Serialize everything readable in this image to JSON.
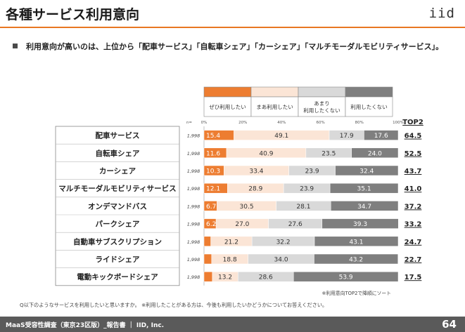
{
  "header": {
    "title": "各種サービス利用意向",
    "logo": "iid"
  },
  "summary": {
    "text": "利用意向が高いのは、上位から「配車サービス」「自転車シェア」「カーシェア」「マルチモーダルモビリティサービス」。"
  },
  "chart_data": {
    "type": "bar",
    "orientation": "horizontal",
    "stacked": true,
    "percent_axis": {
      "min": 0,
      "max": 100,
      "ticks": [
        "0%",
        "20%",
        "40%",
        "60%",
        "80%",
        "100%"
      ]
    },
    "n_label": "n=",
    "top2_header": "TOP2",
    "sort_note": "※利用意向TOP2で降順にソート",
    "series": [
      {
        "name": "ぜひ利用したい",
        "color": "#ed7d31"
      },
      {
        "name": "まあ利用したい",
        "color": "#fbe5d6"
      },
      {
        "name": "あまり利用したくない",
        "name_lines": [
          "あまり",
          "利用したくない"
        ],
        "color": "#d9d9d9"
      },
      {
        "name": "利用したくない",
        "color": "#7f7f7f"
      }
    ],
    "rows": [
      {
        "label": "配車サービス",
        "n": "1,998",
        "values": [
          15.4,
          49.1,
          17.9,
          17.6
        ],
        "labels": [
          "15.4",
          "49.1",
          "17.9",
          "17.6"
        ],
        "top2": "64.5"
      },
      {
        "label": "自転車シェア",
        "n": "1,998",
        "values": [
          11.6,
          40.9,
          23.5,
          24.0
        ],
        "labels": [
          "11.6",
          "40.9",
          "23.5",
          "24.0"
        ],
        "top2": "52.5"
      },
      {
        "label": "カーシェア",
        "n": "1,998",
        "values": [
          10.3,
          33.4,
          23.9,
          32.4
        ],
        "labels": [
          "10.3",
          "33.4",
          "23.9",
          "32.4"
        ],
        "top2": "43.7"
      },
      {
        "label": "マルチモーダルモビリティサービス",
        "n": "1,998",
        "values": [
          12.1,
          28.9,
          23.9,
          35.1
        ],
        "labels": [
          "12.1",
          "28.9",
          "23.9",
          "35.1"
        ],
        "top2": "41.0"
      },
      {
        "label": "オンデマンドバス",
        "n": "1,998",
        "values": [
          6.7,
          30.5,
          28.1,
          34.7
        ],
        "labels": [
          "6.7",
          "30.5",
          "28.1",
          "34.7"
        ],
        "top2": "37.2"
      },
      {
        "label": "パークシェア",
        "n": "1,998",
        "values": [
          6.2,
          27.0,
          27.6,
          39.3
        ],
        "labels": [
          "6.2",
          "27.0",
          "27.6",
          "39.3"
        ],
        "top2": "33.2"
      },
      {
        "label": "自動車サブスクリプション",
        "n": "1,998",
        "values": [
          3.5,
          21.2,
          32.2,
          43.1
        ],
        "labels": [
          "",
          "21.2",
          "32.2",
          "43.1"
        ],
        "top2": "24.7"
      },
      {
        "label": "ライドシェア",
        "n": "1,998",
        "values": [
          3.9,
          18.8,
          34.0,
          43.2
        ],
        "labels": [
          "",
          "18.8",
          "34.0",
          "43.2"
        ],
        "top2": "22.7"
      },
      {
        "label": "電動キックボードシェア",
        "n": "1,998",
        "values": [
          4.3,
          13.2,
          28.6,
          53.9
        ],
        "labels": [
          "",
          "13.2",
          "28.6",
          "53.9"
        ],
        "top2": "17.5"
      }
    ]
  },
  "footnote": {
    "text": "Q以下のようなサービスを利用したいと思いますか。 ※利用したことがある方は、今後も利用したいかどうかについてお答えください。"
  },
  "footer": {
    "text": "MaaS受容性調査（東京23区版）_報告書 ｜ IID, Inc.",
    "page": "64"
  }
}
